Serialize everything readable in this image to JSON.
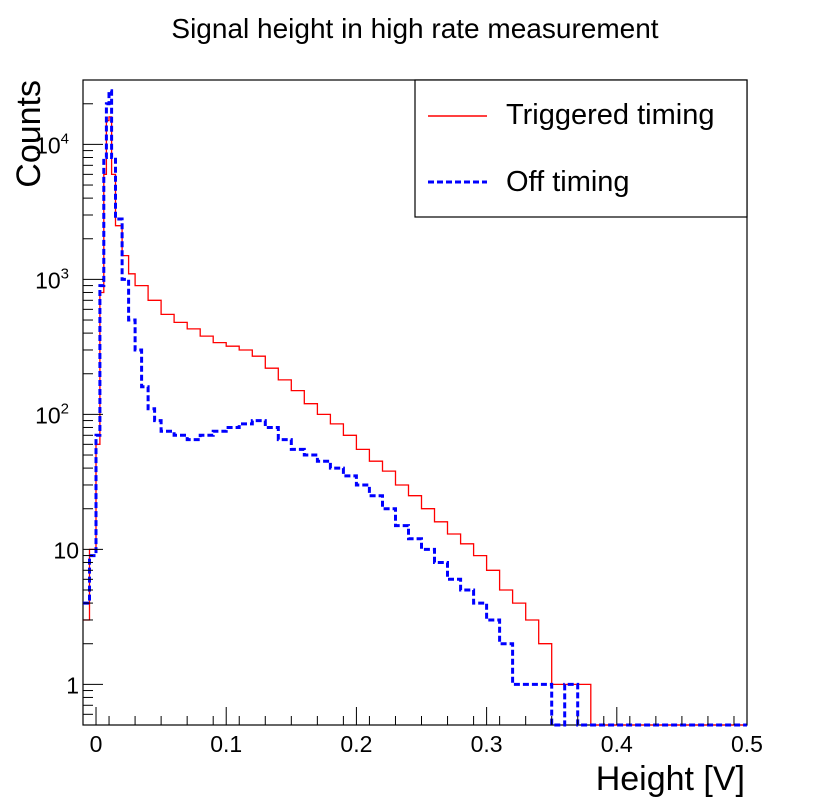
{
  "chart_data": {
    "type": "line",
    "title": "Signal height in high rate measurement",
    "xlabel": "Height [V]",
    "ylabel": "Counts",
    "xlim": [
      -0.01,
      0.5
    ],
    "ylim": [
      0.5,
      30000
    ],
    "yscale": "log",
    "grid": false,
    "legend_position": "top-right",
    "x_ticks": [
      {
        "value": 0,
        "label": "0"
      },
      {
        "value": 0.1,
        "label": "0.1"
      },
      {
        "value": 0.2,
        "label": "0.2"
      },
      {
        "value": 0.3,
        "label": "0.3"
      },
      {
        "value": 0.4,
        "label": "0.4"
      },
      {
        "value": 0.5,
        "label": "0.5"
      }
    ],
    "y_ticks": [
      {
        "value": 1,
        "base": "1",
        "exp": ""
      },
      {
        "value": 10,
        "base": "10",
        "exp": ""
      },
      {
        "value": 100,
        "base": "10",
        "exp": "2"
      },
      {
        "value": 1000,
        "base": "10",
        "exp": "3"
      },
      {
        "value": 10000,
        "base": "10",
        "exp": "4"
      }
    ],
    "series": [
      {
        "name": "Triggered timing",
        "color": "#ff0000",
        "style": "solid",
        "x": [
          -0.01,
          -0.005,
          0.0,
          0.003,
          0.006,
          0.008,
          0.01,
          0.012,
          0.015,
          0.02,
          0.025,
          0.03,
          0.04,
          0.05,
          0.06,
          0.07,
          0.08,
          0.09,
          0.1,
          0.11,
          0.12,
          0.13,
          0.14,
          0.15,
          0.16,
          0.17,
          0.18,
          0.19,
          0.2,
          0.21,
          0.22,
          0.23,
          0.24,
          0.25,
          0.26,
          0.27,
          0.28,
          0.29,
          0.3,
          0.31,
          0.32,
          0.33,
          0.34,
          0.35,
          0.36,
          0.37,
          0.38,
          0.4,
          0.45,
          0.5
        ],
        "y": [
          3,
          10,
          60,
          800,
          6000,
          15000,
          16000,
          6000,
          2500,
          1500,
          1100,
          900,
          700,
          550,
          480,
          430,
          380,
          340,
          320,
          300,
          270,
          220,
          180,
          150,
          120,
          100,
          85,
          70,
          55,
          45,
          38,
          30,
          25,
          20,
          16,
          13,
          11,
          9,
          7,
          5,
          4,
          3,
          2,
          1,
          1,
          1,
          0.5,
          0.5,
          0.5,
          0.5
        ]
      },
      {
        "name": "Off timing",
        "color": "#0000ff",
        "style": "dashed",
        "x": [
          -0.01,
          -0.005,
          0.0,
          0.003,
          0.006,
          0.008,
          0.01,
          0.012,
          0.015,
          0.02,
          0.025,
          0.03,
          0.035,
          0.04,
          0.045,
          0.05,
          0.06,
          0.07,
          0.08,
          0.09,
          0.1,
          0.11,
          0.12,
          0.13,
          0.14,
          0.15,
          0.16,
          0.17,
          0.18,
          0.19,
          0.2,
          0.21,
          0.22,
          0.23,
          0.24,
          0.25,
          0.26,
          0.27,
          0.28,
          0.29,
          0.3,
          0.31,
          0.32,
          0.33,
          0.34,
          0.35,
          0.36,
          0.37,
          0.4,
          0.45,
          0.5
        ],
        "y": [
          4,
          9,
          70,
          900,
          8000,
          20000,
          25000,
          8000,
          2800,
          1000,
          500,
          300,
          160,
          110,
          90,
          75,
          70,
          65,
          70,
          75,
          80,
          85,
          90,
          80,
          65,
          55,
          50,
          45,
          40,
          35,
          30,
          25,
          20,
          15,
          12,
          10,
          8,
          6,
          5,
          4,
          3,
          2,
          1,
          1,
          1,
          0.5,
          1,
          0.5,
          0.5,
          0.5,
          0.5
        ]
      }
    ]
  }
}
